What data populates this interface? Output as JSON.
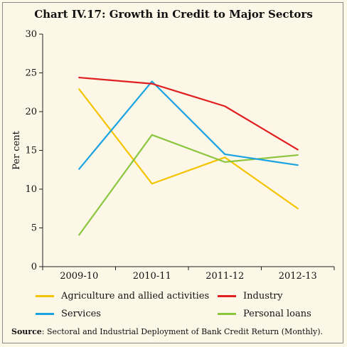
{
  "chart_data": {
    "type": "line",
    "title": "Chart IV.17: Growth in Credit to Major Sectors",
    "ylabel": "Per cent",
    "xlabel": "",
    "categories": [
      "2009-10",
      "2010-11",
      "2011-12",
      "2012-13"
    ],
    "ylim": [
      0,
      30
    ],
    "yticks": [
      0,
      5,
      10,
      15,
      20,
      25,
      30
    ],
    "grid": false,
    "legend_position": "bottom",
    "series": [
      {
        "name": "Agriculture and allied activities",
        "color": "#f5c400",
        "values": [
          22.9,
          10.7,
          14.1,
          7.5
        ]
      },
      {
        "name": "Industry",
        "color": "#e02020",
        "values": [
          24.4,
          23.6,
          20.7,
          15.1
        ]
      },
      {
        "name": "Services",
        "color": "#1aa3e0",
        "values": [
          12.6,
          23.9,
          14.5,
          13.1
        ]
      },
      {
        "name": "Personal loans",
        "color": "#8cc63f",
        "values": [
          4.1,
          17.0,
          13.5,
          14.4
        ]
      }
    ]
  },
  "source": {
    "label": "Source",
    "text": ": Sectoral and Industrial Deployment of Bank Credit Return (Monthly)."
  }
}
